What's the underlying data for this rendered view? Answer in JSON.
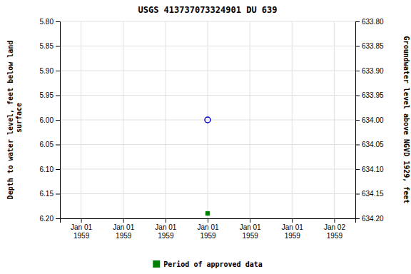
{
  "chart_data": {
    "type": "scatter",
    "title": "USGS 413737073324901 DU 639",
    "ylabel": "Depth to water level, feet below land\n surface",
    "y2label": "Groundwater level above NGVD 1929, feet",
    "categories": [
      "Jan 01\n1959",
      "Jan 01\n1959",
      "Jan 01\n1959",
      "Jan 01\n1959",
      "Jan 01\n1959",
      "Jan 01\n1959",
      "Jan 02\n1959"
    ],
    "series": [
      {
        "color": "#0000cc",
        "marker": "circle",
        "values": [
          null,
          null,
          null,
          6.0,
          null,
          null,
          null
        ]
      },
      {
        "name": "Period of approved data",
        "color": "#008000",
        "marker": "square",
        "values": [
          null,
          null,
          null,
          6.19,
          null,
          null,
          null
        ]
      }
    ],
    "ylim": [
      6.2,
      5.8
    ],
    "yticks": [
      {
        "value": 5.8,
        "label": "5.80"
      },
      5.85,
      {
        "value": 5.9,
        "label": "5.90"
      },
      5.95,
      {
        "value": 6.0,
        "label": "6.00"
      },
      6.05,
      {
        "value": 6.1,
        "label": "6.10"
      },
      6.15,
      {
        "value": 6.2,
        "label": "6.20"
      }
    ],
    "y2lim": [
      634.2,
      633.8
    ],
    "y2ticks": [
      {
        "value": 633.8,
        "label": "633.80"
      },
      633.85,
      {
        "value": 633.9,
        "label": "633.90"
      },
      633.95,
      {
        "value": 634.0,
        "label": "634.00"
      },
      634.05,
      {
        "value": 634.1,
        "label": "634.10"
      },
      634.15,
      {
        "value": 634.2,
        "label": "634.20"
      }
    ],
    "grid": true,
    "legend": "bottom"
  }
}
